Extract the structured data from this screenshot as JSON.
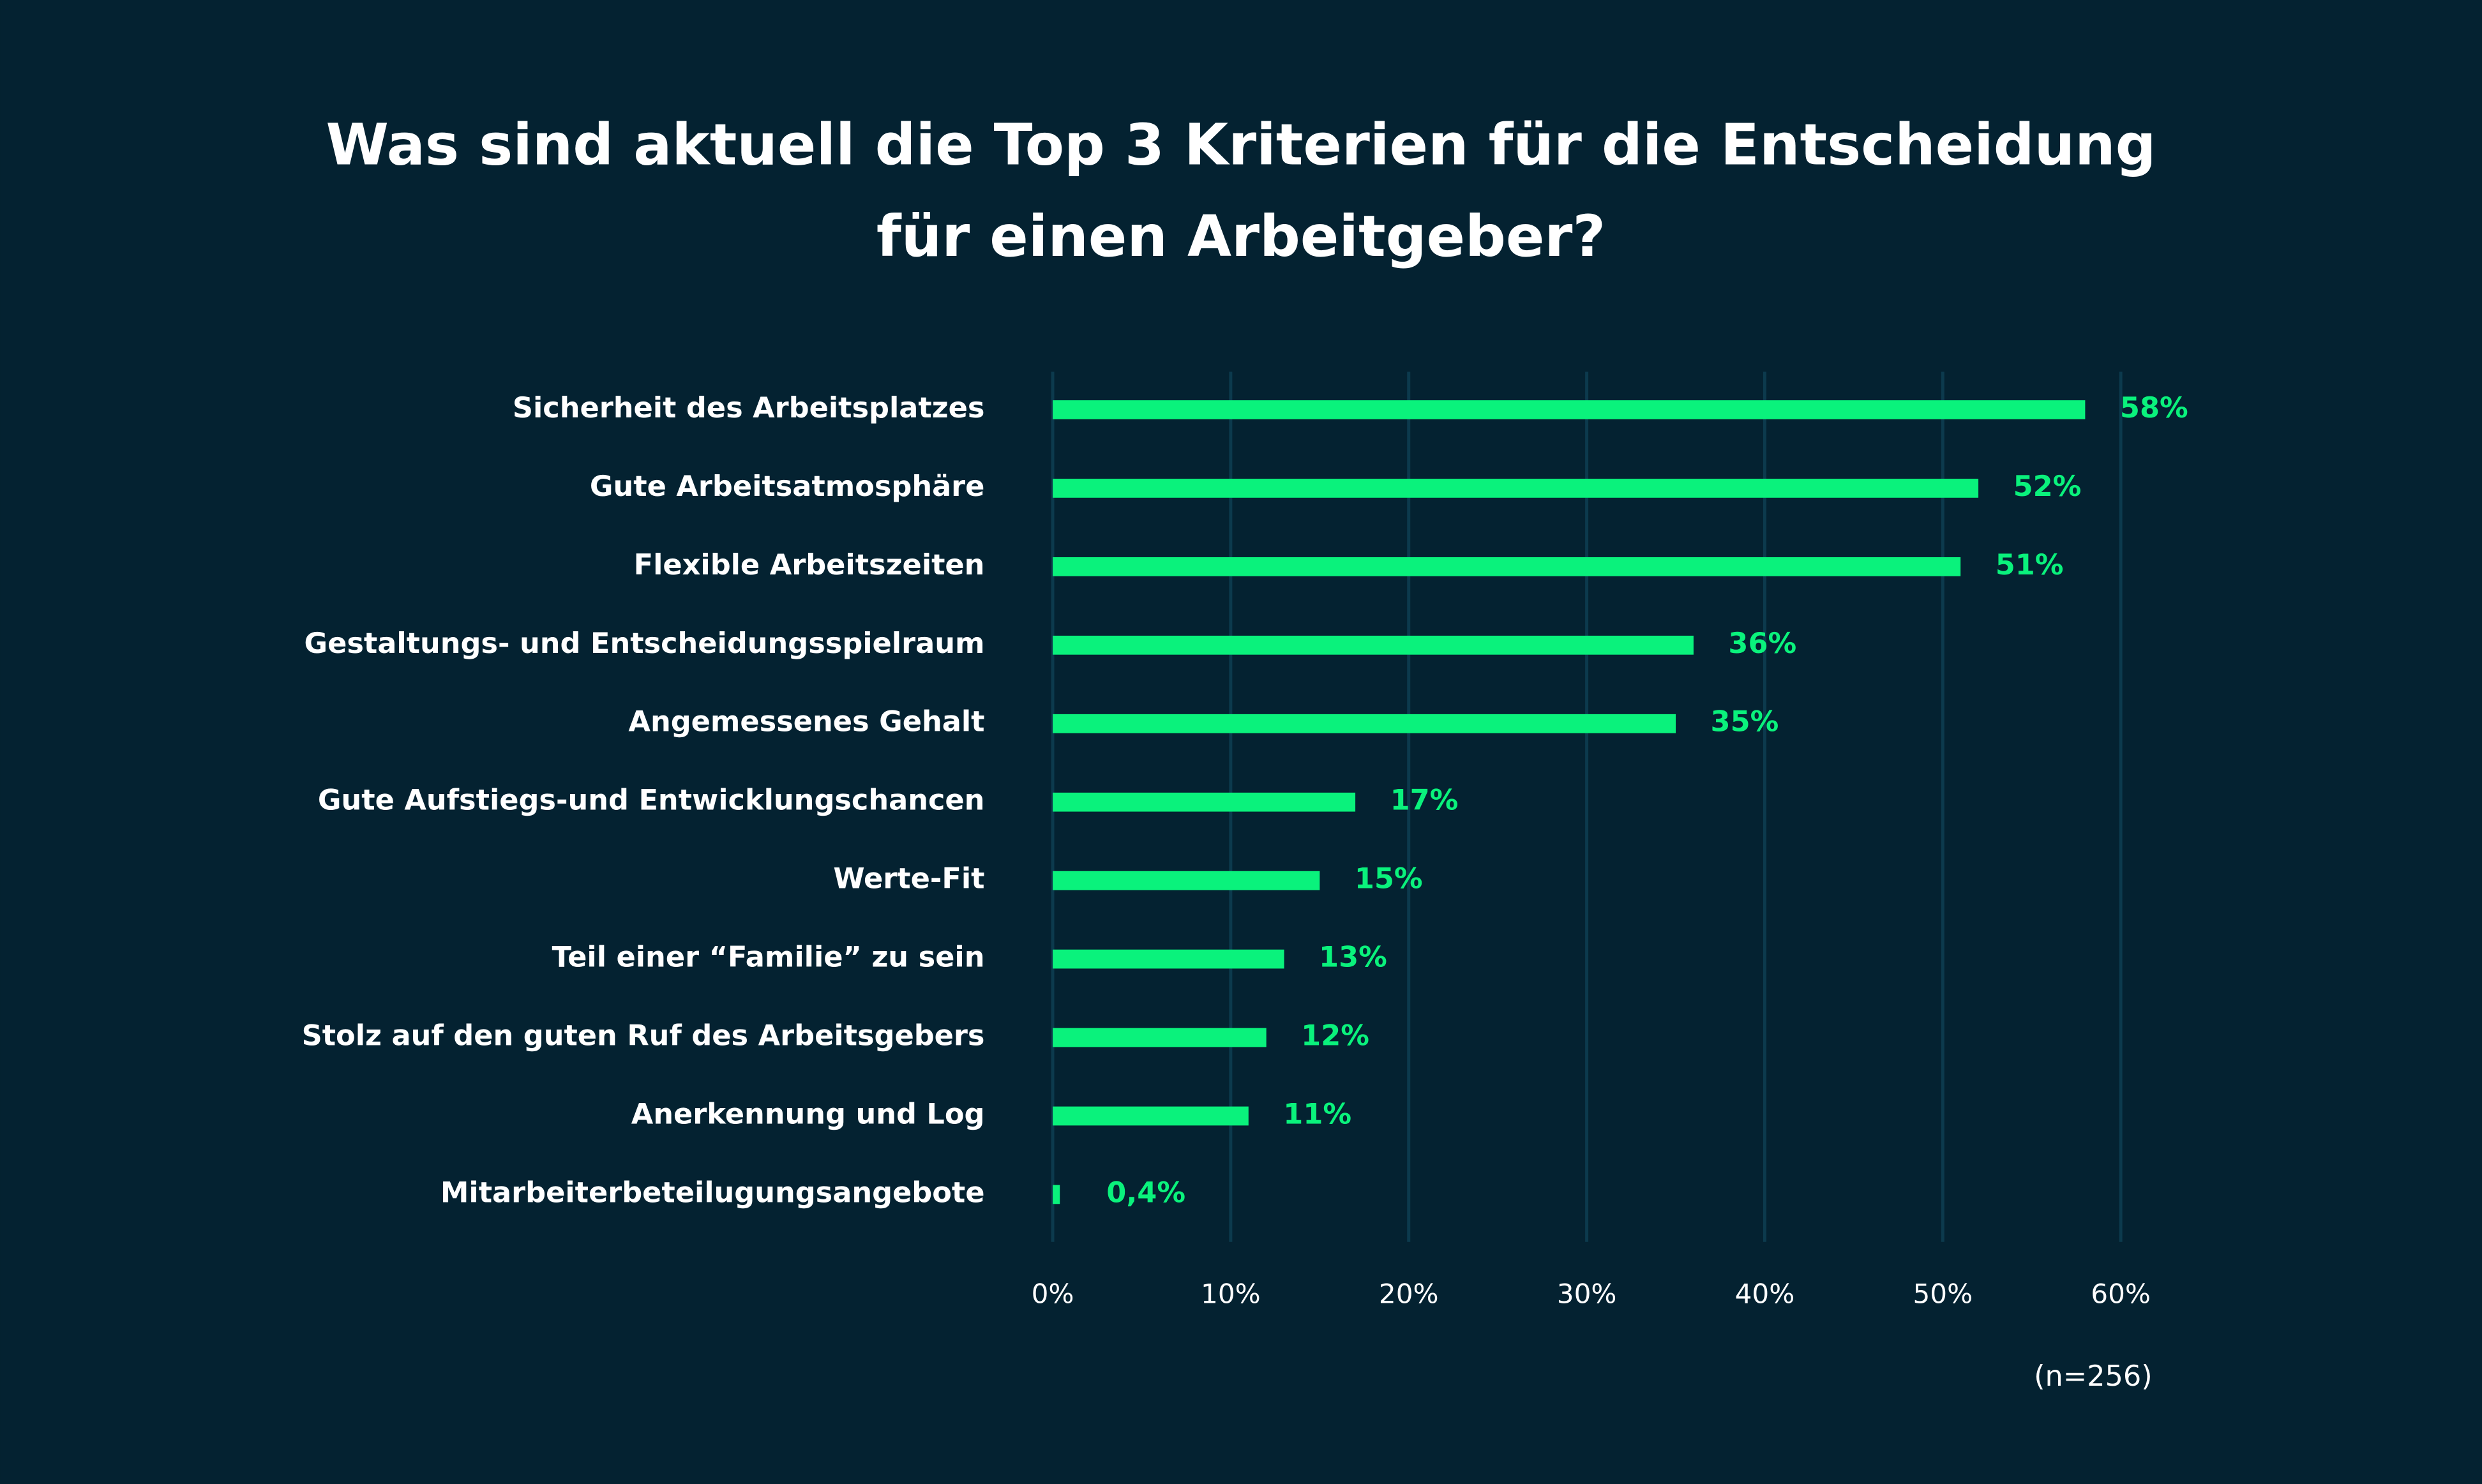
{
  "chart_data": {
    "type": "bar",
    "orientation": "horizontal",
    "title": [
      "Was sind aktuell die Top 3 Kriterien für die Entscheidung",
      "für einen Arbeitgeber?"
    ],
    "categories": [
      "Sicherheit des Arbeitsplatzes",
      "Gute Arbeitsatmosphäre",
      "Flexible Arbeitszeiten",
      "Gestaltungs- und Entscheidungsspielraum",
      "Angemessenes Gehalt",
      "Gute Aufstiegs-und Entwicklungschancen",
      "Werte-Fit",
      "Teil einer “Familie” zu sein",
      "Stolz auf den guten Ruf des Arbeitsgebers",
      "Anerkennung und Log",
      "Mitarbeiterbeteilugungsangebote"
    ],
    "values": [
      58,
      52,
      51,
      36,
      35,
      17,
      15,
      13,
      12,
      11,
      0.4
    ],
    "value_labels": [
      "58%",
      "52%",
      "51%",
      "36%",
      "35%",
      "17%",
      "15%",
      "13%",
      "12%",
      "11%",
      "0,4%"
    ],
    "color": "#0af27c",
    "xlim": [
      0,
      60
    ],
    "xticks": [
      {
        "value": 0,
        "label": "0%"
      },
      {
        "value": 10,
        "label": "10%"
      },
      {
        "value": 20,
        "label": "20%"
      },
      {
        "value": 30,
        "label": "30%"
      },
      {
        "value": 40,
        "label": "40%"
      },
      {
        "value": 50,
        "label": "50%"
      },
      {
        "value": 60,
        "label": "60%"
      }
    ],
    "grid": true,
    "annotation": "(n=256)"
  }
}
